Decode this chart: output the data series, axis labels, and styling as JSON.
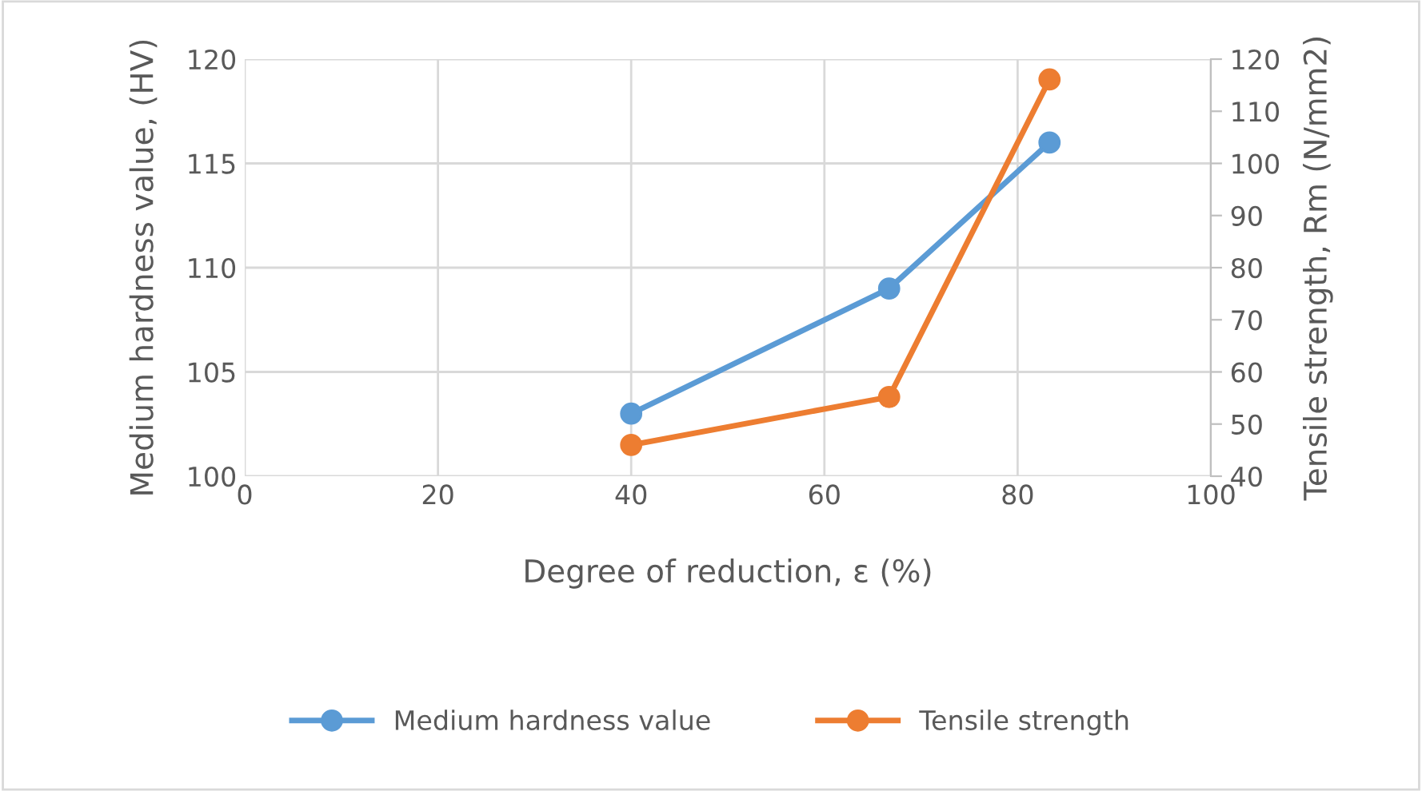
{
  "chart_data": {
    "type": "line",
    "xlabel": "Degree of reduction, ε (%)",
    "ylabel": "Medium hardness value, (HV)",
    "y2label": "Tensile strength, Rm (N/mm2)",
    "series": [
      {
        "name": "Medium hardness value",
        "color": "#5b9bd5",
        "x": [
          40,
          66.7,
          83.3
        ],
        "values": [
          103,
          109,
          116
        ]
      },
      {
        "name": "Tensile strength",
        "color": "#ed7d31",
        "x": [
          40,
          66.7,
          83.3
        ],
        "values": [
          46,
          55.2,
          116.1
        ],
        "axis": "y2"
      }
    ],
    "xlim": [
      0,
      100
    ],
    "xticks": [
      0,
      20,
      40,
      60,
      80,
      100
    ],
    "ylim": [
      100,
      120
    ],
    "yticks": [
      100,
      105,
      110,
      115,
      120
    ],
    "y2lim": [
      40,
      120
    ],
    "y2ticks": [
      40,
      50,
      60,
      70,
      80,
      90,
      100,
      110,
      120
    ],
    "grid": true,
    "legend": "bottom",
    "marker": "circle",
    "line_style": "solid"
  }
}
